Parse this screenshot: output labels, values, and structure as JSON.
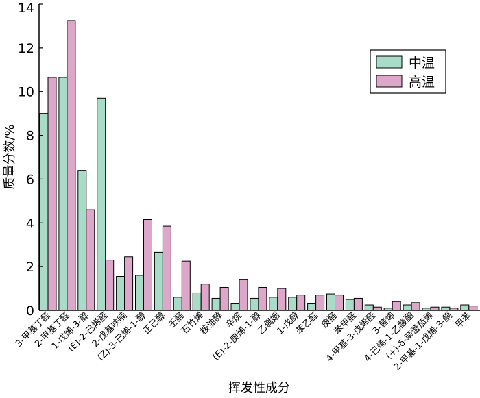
{
  "chart_data": {
    "type": "bar",
    "xlabel": "挥发性成分",
    "ylabel": "质量分数/%",
    "ylim": [
      0,
      14
    ],
    "yticks": [
      0,
      2,
      4,
      6,
      8,
      10,
      12,
      14
    ],
    "grid": false,
    "legend_position": "top-right",
    "categories": [
      "3-甲基丁醛",
      "2-甲基丁醛",
      "1-戊烯-3-醇",
      "(E)-2-己烯醛",
      "2-戊基呋喃",
      "(Z)-3-己烯-1-醇",
      "正己醇",
      "壬醛",
      "石竹烯",
      "桉油醇",
      "辛烷",
      "(E)-2-庚烯-1-醇",
      "乙偶姻",
      "1-戊醇",
      "苯乙醛",
      "庚醛",
      "苯甲醛",
      "4-甲基-3-戊烯醛",
      "3-蒈烯",
      "4-己烯-1-乙酸酯",
      "(+)-δ-荜澄茄烯",
      "2-甲基-1-戊烯-3-酮",
      "甲苯"
    ],
    "series": [
      {
        "name": "中温",
        "color": "#a8dcc8",
        "values": [
          9.0,
          10.65,
          6.4,
          9.7,
          1.55,
          1.6,
          2.65,
          0.6,
          0.8,
          0.55,
          0.3,
          0.55,
          0.6,
          0.6,
          0.3,
          0.75,
          0.5,
          0.25,
          0.1,
          0.25,
          0.1,
          0.15,
          0.25
        ]
      },
      {
        "name": "高温",
        "color": "#dca7c8",
        "values": [
          10.65,
          13.25,
          4.6,
          2.3,
          2.45,
          4.15,
          3.85,
          2.25,
          1.2,
          1.05,
          1.4,
          1.05,
          1.0,
          0.7,
          0.7,
          0.7,
          0.55,
          0.15,
          0.4,
          0.35,
          0.15,
          0.1,
          0.2
        ]
      }
    ]
  }
}
